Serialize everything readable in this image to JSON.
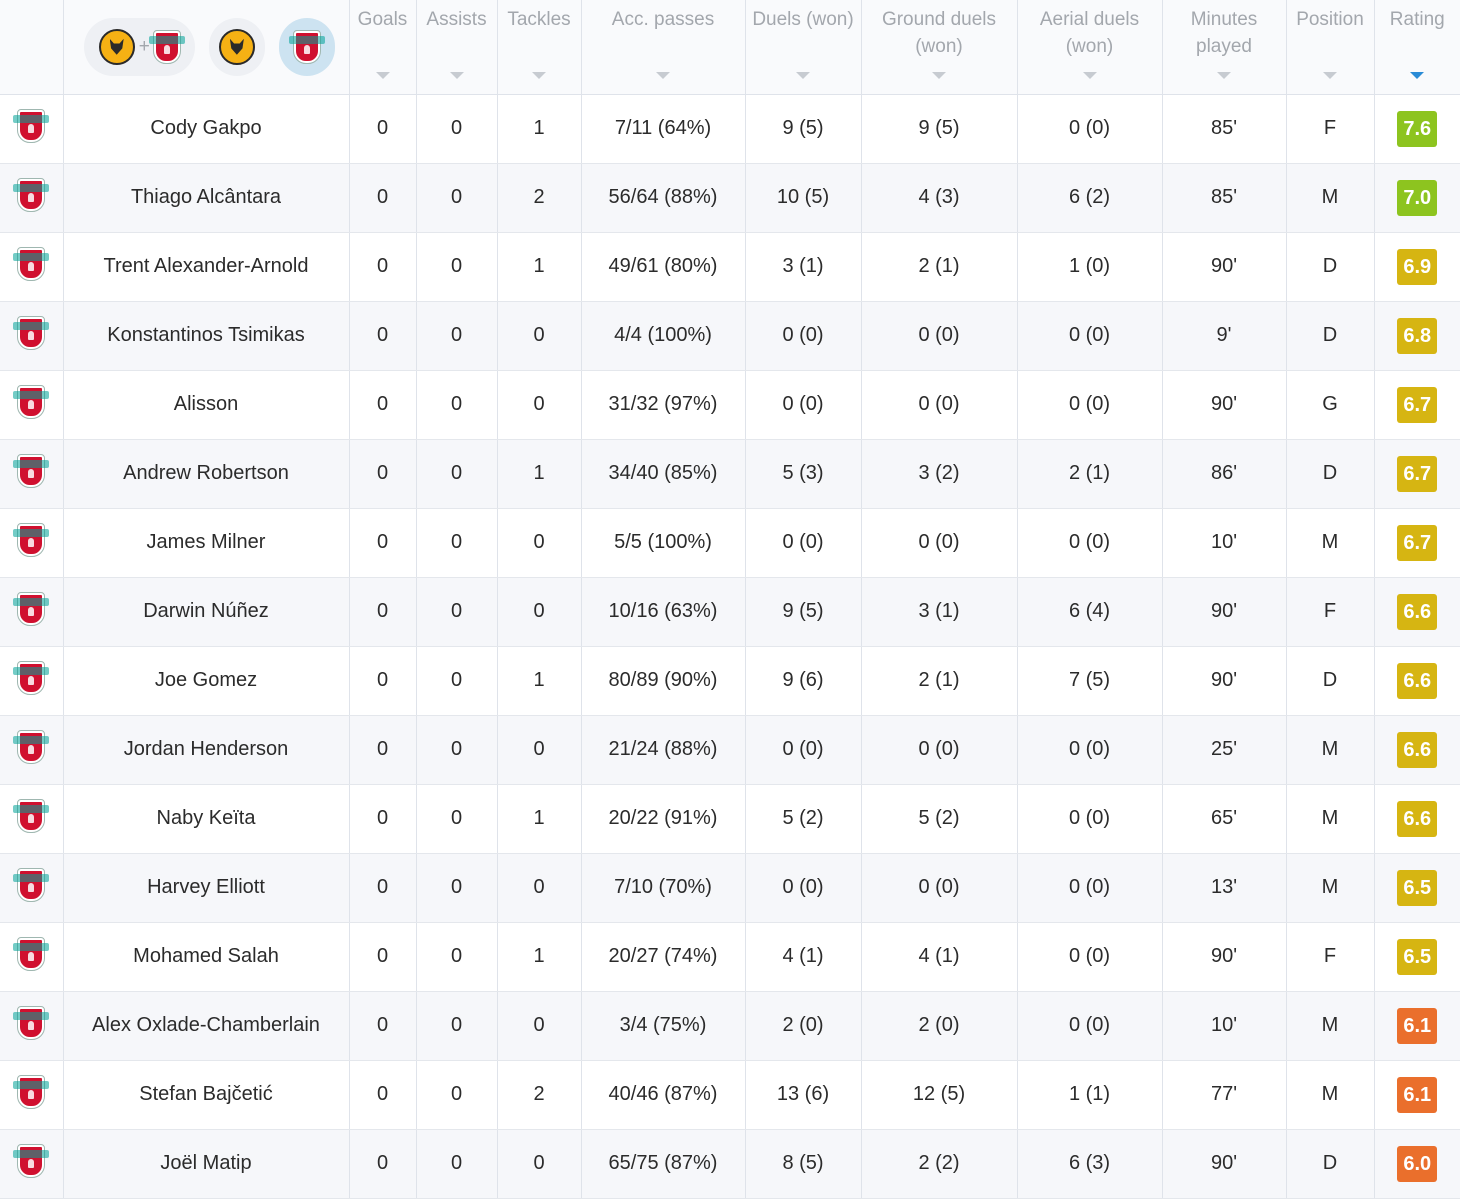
{
  "header": {
    "team_filters": [
      {
        "name": "both-teams-filter",
        "icons": [
          "wolves-crest-icon",
          "liverpool-crest-icon"
        ],
        "separator": "+"
      },
      {
        "name": "wolves-filter",
        "icons": [
          "wolves-crest-icon"
        ]
      },
      {
        "name": "liverpool-filter",
        "icons": [
          "liverpool-crest-icon"
        ],
        "selected": true
      }
    ],
    "columns": [
      {
        "key": "goals",
        "label": "Goals"
      },
      {
        "key": "assists",
        "label": "Assists"
      },
      {
        "key": "tackles",
        "label": "Tackles"
      },
      {
        "key": "acc_passes",
        "label": "Acc. passes"
      },
      {
        "key": "duels",
        "label": "Duels (won)"
      },
      {
        "key": "ground_duels",
        "label": "Ground duels (won)"
      },
      {
        "key": "aerial_duels",
        "label": "Aerial duels (won)"
      },
      {
        "key": "minutes",
        "label": "Minutes played"
      },
      {
        "key": "position",
        "label": "Position"
      },
      {
        "key": "rating",
        "label": "Rating",
        "sorted": true
      }
    ]
  },
  "colors": {
    "rating_high": "#8dc41f",
    "rating_good": "#d6b512",
    "rating_low": "#ea6f2c",
    "sort_active": "#2a8bd6"
  },
  "players": [
    {
      "name": "Cody Gakpo",
      "goals": "0",
      "assists": "0",
      "tackles": "1",
      "acc_passes": "7/11 (64%)",
      "duels": "9 (5)",
      "ground_duels": "9 (5)",
      "aerial_duels": "0 (0)",
      "minutes": "85'",
      "position": "F",
      "rating": "7.6",
      "rating_color": "#8dc41f"
    },
    {
      "name": "Thiago Alcântara",
      "goals": "0",
      "assists": "0",
      "tackles": "2",
      "acc_passes": "56/64 (88%)",
      "duels": "10 (5)",
      "ground_duels": "4 (3)",
      "aerial_duels": "6 (2)",
      "minutes": "85'",
      "position": "M",
      "rating": "7.0",
      "rating_color": "#8dc41f"
    },
    {
      "name": "Trent Alexander-Arnold",
      "goals": "0",
      "assists": "0",
      "tackles": "1",
      "acc_passes": "49/61 (80%)",
      "duels": "3 (1)",
      "ground_duels": "2 (1)",
      "aerial_duels": "1 (0)",
      "minutes": "90'",
      "position": "D",
      "rating": "6.9",
      "rating_color": "#d6b512"
    },
    {
      "name": "Konstantinos Tsimikas",
      "goals": "0",
      "assists": "0",
      "tackles": "0",
      "acc_passes": "4/4 (100%)",
      "duels": "0 (0)",
      "ground_duels": "0 (0)",
      "aerial_duels": "0 (0)",
      "minutes": "9'",
      "position": "D",
      "rating": "6.8",
      "rating_color": "#d6b512"
    },
    {
      "name": "Alisson",
      "goals": "0",
      "assists": "0",
      "tackles": "0",
      "acc_passes": "31/32 (97%)",
      "duels": "0 (0)",
      "ground_duels": "0 (0)",
      "aerial_duels": "0 (0)",
      "minutes": "90'",
      "position": "G",
      "rating": "6.7",
      "rating_color": "#d6b512"
    },
    {
      "name": "Andrew Robertson",
      "goals": "0",
      "assists": "0",
      "tackles": "1",
      "acc_passes": "34/40 (85%)",
      "duels": "5 (3)",
      "ground_duels": "3 (2)",
      "aerial_duels": "2 (1)",
      "minutes": "86'",
      "position": "D",
      "rating": "6.7",
      "rating_color": "#d6b512"
    },
    {
      "name": "James Milner",
      "goals": "0",
      "assists": "0",
      "tackles": "0",
      "acc_passes": "5/5 (100%)",
      "duels": "0 (0)",
      "ground_duels": "0 (0)",
      "aerial_duels": "0 (0)",
      "minutes": "10'",
      "position": "M",
      "rating": "6.7",
      "rating_color": "#d6b512"
    },
    {
      "name": "Darwin Núñez",
      "goals": "0",
      "assists": "0",
      "tackles": "0",
      "acc_passes": "10/16 (63%)",
      "duels": "9 (5)",
      "ground_duels": "3 (1)",
      "aerial_duels": "6 (4)",
      "minutes": "90'",
      "position": "F",
      "rating": "6.6",
      "rating_color": "#d6b512"
    },
    {
      "name": "Joe Gomez",
      "goals": "0",
      "assists": "0",
      "tackles": "1",
      "acc_passes": "80/89 (90%)",
      "duels": "9 (6)",
      "ground_duels": "2 (1)",
      "aerial_duels": "7 (5)",
      "minutes": "90'",
      "position": "D",
      "rating": "6.6",
      "rating_color": "#d6b512"
    },
    {
      "name": "Jordan Henderson",
      "goals": "0",
      "assists": "0",
      "tackles": "0",
      "acc_passes": "21/24 (88%)",
      "duels": "0 (0)",
      "ground_duels": "0 (0)",
      "aerial_duels": "0 (0)",
      "minutes": "25'",
      "position": "M",
      "rating": "6.6",
      "rating_color": "#d6b512"
    },
    {
      "name": "Naby Keïta",
      "goals": "0",
      "assists": "0",
      "tackles": "1",
      "acc_passes": "20/22 (91%)",
      "duels": "5 (2)",
      "ground_duels": "5 (2)",
      "aerial_duels": "0 (0)",
      "minutes": "65'",
      "position": "M",
      "rating": "6.6",
      "rating_color": "#d6b512"
    },
    {
      "name": "Harvey Elliott",
      "goals": "0",
      "assists": "0",
      "tackles": "0",
      "acc_passes": "7/10 (70%)",
      "duels": "0 (0)",
      "ground_duels": "0 (0)",
      "aerial_duels": "0 (0)",
      "minutes": "13'",
      "position": "M",
      "rating": "6.5",
      "rating_color": "#d6b512"
    },
    {
      "name": "Mohamed Salah",
      "goals": "0",
      "assists": "0",
      "tackles": "1",
      "acc_passes": "20/27 (74%)",
      "duels": "4 (1)",
      "ground_duels": "4 (1)",
      "aerial_duels": "0 (0)",
      "minutes": "90'",
      "position": "F",
      "rating": "6.5",
      "rating_color": "#d6b512"
    },
    {
      "name": "Alex Oxlade-Chamberlain",
      "goals": "0",
      "assists": "0",
      "tackles": "0",
      "acc_passes": "3/4 (75%)",
      "duels": "2 (0)",
      "ground_duels": "2 (0)",
      "aerial_duels": "0 (0)",
      "minutes": "10'",
      "position": "M",
      "rating": "6.1",
      "rating_color": "#ea6f2c"
    },
    {
      "name": "Stefan Bajčetić",
      "goals": "0",
      "assists": "0",
      "tackles": "2",
      "acc_passes": "40/46 (87%)",
      "duels": "13 (6)",
      "ground_duels": "12 (5)",
      "aerial_duels": "1 (1)",
      "minutes": "77'",
      "position": "M",
      "rating": "6.1",
      "rating_color": "#ea6f2c"
    },
    {
      "name": "Joël Matip",
      "goals": "0",
      "assists": "0",
      "tackles": "0",
      "acc_passes": "65/75 (87%)",
      "duels": "8 (5)",
      "ground_duels": "2 (2)",
      "aerial_duels": "6 (3)",
      "minutes": "90'",
      "position": "D",
      "rating": "6.0",
      "rating_color": "#ea6f2c"
    }
  ]
}
